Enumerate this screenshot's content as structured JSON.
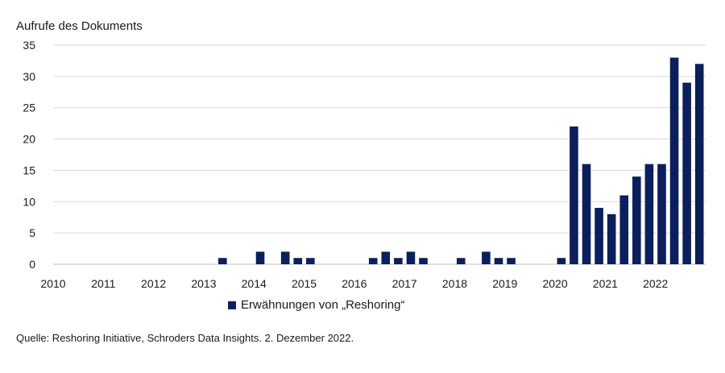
{
  "chart_data": {
    "type": "bar",
    "ylabel": "Aufrufe des Dokuments",
    "ylim": [
      0,
      35
    ],
    "yticks": [
      0,
      5,
      10,
      15,
      20,
      25,
      30,
      35
    ],
    "xticks": [
      "2010",
      "2011",
      "2012",
      "2013",
      "2014",
      "2015",
      "2016",
      "2017",
      "2018",
      "2019",
      "2020",
      "2021",
      "2022"
    ],
    "grid": true,
    "legend_position": "bottom",
    "series": [
      {
        "name": "Erwähnungen von „Reshoring“",
        "color": "#0b1f5c",
        "x": [
          2013.25,
          2014.0,
          2014.5,
          2014.75,
          2015.0,
          2016.25,
          2016.5,
          2016.75,
          2017.0,
          2017.25,
          2018.0,
          2018.5,
          2018.75,
          2019.0,
          2020.0,
          2020.25,
          2020.5,
          2020.75,
          2021.0,
          2021.25,
          2021.5,
          2021.75,
          2022.0,
          2022.25,
          2022.5,
          2022.75
        ],
        "values": [
          1,
          2,
          2,
          1,
          1,
          1,
          2,
          1,
          2,
          1,
          1,
          2,
          1,
          1,
          1,
          22,
          16,
          9,
          8,
          11,
          14,
          16,
          16,
          33,
          29,
          32
        ]
      }
    ]
  },
  "source": "Quelle:  Reshoring Initiative, Schroders Data Insights. 2. Dezember 2022."
}
